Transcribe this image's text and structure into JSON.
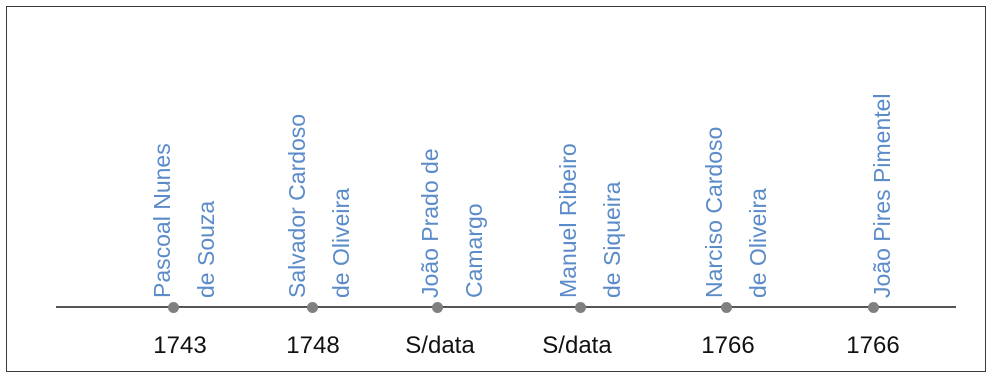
{
  "colors": {
    "label": "#5b8bc9",
    "axis": "#555555",
    "dot": "#808080"
  },
  "timeline": [
    {
      "name_lines": [
        "Pascoal Nunes",
        "de Souza"
      ],
      "date": "1743"
    },
    {
      "name_lines": [
        "Salvador Cardoso",
        "de Oliveira"
      ],
      "date": "1748"
    },
    {
      "name_lines": [
        "João Prado de",
        "Camargo"
      ],
      "date": "S/data"
    },
    {
      "name_lines": [
        "Manuel  Ribeiro",
        "de Siqueira"
      ],
      "date": "S/data"
    },
    {
      "name_lines": [
        "Narciso Cardoso",
        "de Oliveira"
      ],
      "date": "1766"
    },
    {
      "name_lines": [
        "João Pires Pimentel"
      ],
      "date": "1766"
    }
  ]
}
